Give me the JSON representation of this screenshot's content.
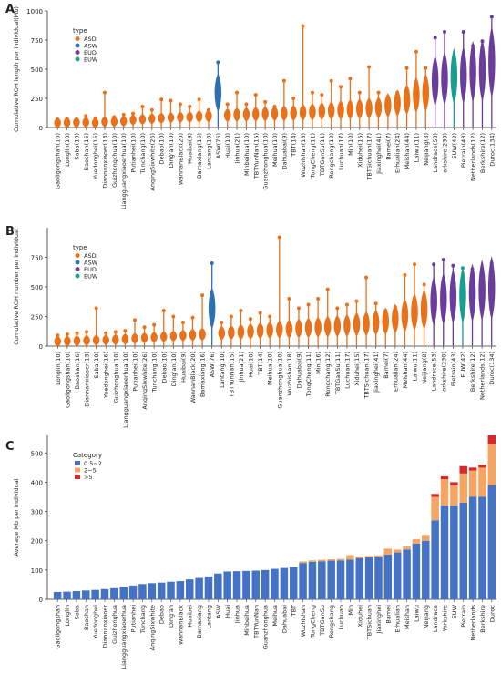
{
  "panel_labels": [
    "A",
    "B",
    "C"
  ],
  "colors": {
    "ASD": "#e8711a",
    "ASW": "#2f6fb0",
    "EUD": "#6a3d9a",
    "EUW": "#1a9e8f",
    "bar_05_2": "#4472c4",
    "bar_2_5": "#f5a462",
    "bar_gt5": "#d7282f"
  },
  "chart_data": [
    {
      "panel": "A",
      "type": "violin",
      "ylabel": "Cumulative ROH length per individual(Mb)",
      "ylim": [
        0,
        1000
      ],
      "yticks": [
        0,
        250,
        500,
        750,
        1000
      ],
      "legend": {
        "title": "type",
        "items": [
          "ASD",
          "ASW",
          "EUD",
          "EUW"
        ],
        "position": "top-left"
      },
      "categories": [
        {
          "label": "Gaoligongshan(10)",
          "type": "ASD",
          "median": 40,
          "max": 70
        },
        {
          "label": "Longlin(10)",
          "type": "ASD",
          "median": 42,
          "max": 75
        },
        {
          "label": "Saba(10)",
          "type": "ASD",
          "median": 44,
          "max": 70
        },
        {
          "label": "Baoshan(16)",
          "type": "ASD",
          "median": 45,
          "max": 100
        },
        {
          "label": "Yuedonghei(16)",
          "type": "ASD",
          "median": 40,
          "max": 80
        },
        {
          "label": "Diannanxiaoer(13)",
          "type": "ASD",
          "median": 50,
          "max": 300
        },
        {
          "label": "Guizhongchua(10)",
          "type": "ASD",
          "median": 52,
          "max": 90
        },
        {
          "label": "Liangguangxiaoerhua(10)",
          "type": "ASD",
          "median": 55,
          "max": 110
        },
        {
          "label": "Putianhei(10)",
          "type": "ASD",
          "median": 65,
          "max": 120
        },
        {
          "label": "Tunchang(10)",
          "type": "ASD",
          "median": 70,
          "max": 180
        },
        {
          "label": "AnqingSixwhite(26)",
          "type": "ASD",
          "median": 75,
          "max": 150
        },
        {
          "label": "Debao(10)",
          "type": "ASD",
          "median": 80,
          "max": 240
        },
        {
          "label": "Ding'an(10)",
          "type": "ASD",
          "median": 85,
          "max": 230
        },
        {
          "label": "WannanBlack(20)",
          "type": "ASD",
          "median": 88,
          "max": 200
        },
        {
          "label": "Huaibai(9)",
          "type": "ASD",
          "median": 90,
          "max": 180
        },
        {
          "label": "Bamaxiang(16)",
          "type": "ASD",
          "median": 95,
          "max": 240
        },
        {
          "label": "Lantang(10)",
          "type": "ASD",
          "median": 100,
          "max": 150
        },
        {
          "label": "ASW(76)",
          "type": "ASW",
          "median": 300,
          "max": 560
        },
        {
          "label": "Huai(10)",
          "type": "ASD",
          "median": 105,
          "max": 200
        },
        {
          "label": "Jinhua(21)",
          "type": "ASD",
          "median": 110,
          "max": 300
        },
        {
          "label": "Minbeihua(10)",
          "type": "ASD",
          "median": 112,
          "max": 200
        },
        {
          "label": "TBTYunNan(15)",
          "type": "ASD",
          "median": 115,
          "max": 280
        },
        {
          "label": "Guanzhonghua(10)",
          "type": "ASD",
          "median": 118,
          "max": 220
        },
        {
          "label": "Meihua(10)",
          "type": "ASD",
          "median": 120,
          "max": 180
        },
        {
          "label": "Dahuabai(9)",
          "type": "ASD",
          "median": 122,
          "max": 400
        },
        {
          "label": "TBT(14)",
          "type": "ASD",
          "median": 125,
          "max": 250
        },
        {
          "label": "Wuzhishan(18)",
          "type": "ASD",
          "median": 130,
          "max": 870
        },
        {
          "label": "TongCheng(11)",
          "type": "ASD",
          "median": 135,
          "max": 300
        },
        {
          "label": "TBTGanSu(11)",
          "type": "ASD",
          "median": 140,
          "max": 280
        },
        {
          "label": "Rongchang(12)",
          "type": "ASD",
          "median": 145,
          "max": 400
        },
        {
          "label": "Luchuan(17)",
          "type": "ASD",
          "median": 150,
          "max": 350
        },
        {
          "label": "Min(10)",
          "type": "ASD",
          "median": 155,
          "max": 420
        },
        {
          "label": "Xiduhei(15)",
          "type": "ASD",
          "median": 160,
          "max": 300
        },
        {
          "label": "TBTSichuan(17)",
          "type": "ASD",
          "median": 165,
          "max": 520
        },
        {
          "label": "Jiaxinghei(41)",
          "type": "ASD",
          "median": 170,
          "max": 300
        },
        {
          "label": "Bamei(7)",
          "type": "ASD",
          "median": 190,
          "max": 250
        },
        {
          "label": "Erhualian(24)",
          "type": "ASD",
          "median": 210,
          "max": 300
        },
        {
          "label": "Meishan(44)",
          "type": "ASD",
          "median": 240,
          "max": 510
        },
        {
          "label": "Laiwu(11)",
          "type": "ASD",
          "median": 280,
          "max": 650
        },
        {
          "label": "Neijiang(8)",
          "type": "ASD",
          "median": 300,
          "max": 510
        },
        {
          "label": "Landrace(53)",
          "type": "EUD",
          "median": 400,
          "max": 770
        },
        {
          "label": "orkshire(230)",
          "type": "EUD",
          "median": 420,
          "max": 820
        },
        {
          "label": "EUW(42)",
          "type": "EUW",
          "median": 440,
          "max": 600
        },
        {
          "label": "Pietrain(43)",
          "type": "EUD",
          "median": 450,
          "max": 820
        },
        {
          "label": "Netherlands(12)",
          "type": "EUD",
          "median": 480,
          "max": 700
        },
        {
          "label": "Berkshire(12)",
          "type": "EUD",
          "median": 490,
          "max": 740
        },
        {
          "label": "Duroc(134)",
          "type": "EUD",
          "median": 560,
          "max": 950
        }
      ]
    },
    {
      "panel": "B",
      "type": "violin",
      "ylabel": "Cumulative ROH number per individual",
      "ylim": [
        0,
        1000
      ],
      "yticks": [
        0,
        250,
        500,
        750
      ],
      "legend": {
        "title": "type",
        "items": [
          "ASD",
          "ASW",
          "EUD",
          "EUW"
        ],
        "position": "top-left"
      },
      "categories": [
        {
          "label": "Longlin(10)",
          "type": "ASD",
          "median": 40,
          "max": 90
        },
        {
          "label": "Gaoligongshan(10)",
          "type": "ASD",
          "median": 42,
          "max": 100
        },
        {
          "label": "Baoshan(16)",
          "type": "ASD",
          "median": 45,
          "max": 110
        },
        {
          "label": "Diannanxiaoer(13)",
          "type": "ASD",
          "median": 48,
          "max": 120
        },
        {
          "label": "Saba(10)",
          "type": "ASD",
          "median": 50,
          "max": 320
        },
        {
          "label": "Yuedonghei(16)",
          "type": "ASD",
          "median": 52,
          "max": 110
        },
        {
          "label": "Guizhonghua(10)",
          "type": "ASD",
          "median": 55,
          "max": 120
        },
        {
          "label": "Liangguangxiaoerhua(10)",
          "type": "ASD",
          "median": 60,
          "max": 130
        },
        {
          "label": "Putianhei(10)",
          "type": "ASD",
          "median": 65,
          "max": 220
        },
        {
          "label": "AnqingSixwhite(26)",
          "type": "ASD",
          "median": 70,
          "max": 160
        },
        {
          "label": "Tunchang(10)",
          "type": "ASD",
          "median": 75,
          "max": 180
        },
        {
          "label": "Debao(10)",
          "type": "ASD",
          "median": 80,
          "max": 300
        },
        {
          "label": "Ding'an(10)",
          "type": "ASD",
          "median": 85,
          "max": 250
        },
        {
          "label": "Huaibai(9)",
          "type": "ASD",
          "median": 90,
          "max": 200
        },
        {
          "label": "WannanBlack(20)",
          "type": "ASD",
          "median": 95,
          "max": 240
        },
        {
          "label": "Bamaxiang(16)",
          "type": "ASD",
          "median": 100,
          "max": 430
        },
        {
          "label": "ASW(76)",
          "type": "ASW",
          "median": 320,
          "max": 700
        },
        {
          "label": "Lantang(10)",
          "type": "ASD",
          "median": 110,
          "max": 200
        },
        {
          "label": "TBTYunNan(15)",
          "type": "ASD",
          "median": 115,
          "max": 250
        },
        {
          "label": "Jinhua(21)",
          "type": "ASD",
          "median": 120,
          "max": 300
        },
        {
          "label": "Huai(10)",
          "type": "ASD",
          "median": 125,
          "max": 230
        },
        {
          "label": "TBT(14)",
          "type": "ASD",
          "median": 130,
          "max": 280
        },
        {
          "label": "Meihua(10)",
          "type": "ASD",
          "median": 135,
          "max": 250
        },
        {
          "label": "Guanzhonghua(10)",
          "type": "ASD",
          "median": 140,
          "max": 920
        },
        {
          "label": "Wuzhishan(18)",
          "type": "ASD",
          "median": 145,
          "max": 400
        },
        {
          "label": "Dahuabai(9)",
          "type": "ASD",
          "median": 150,
          "max": 320
        },
        {
          "label": "TongCheng(11)",
          "type": "ASD",
          "median": 155,
          "max": 350
        },
        {
          "label": "Min(16)",
          "type": "ASD",
          "median": 160,
          "max": 400
        },
        {
          "label": "Rongchang(12)",
          "type": "ASD",
          "median": 165,
          "max": 480
        },
        {
          "label": "TBTGanSu(11)",
          "type": "ASD",
          "median": 170,
          "max": 320
        },
        {
          "label": "Luchuan(17)",
          "type": "ASD",
          "median": 175,
          "max": 350
        },
        {
          "label": "Xiduhei(15)",
          "type": "ASD",
          "median": 185,
          "max": 380
        },
        {
          "label": "TBTSichuan(17)",
          "type": "ASD",
          "median": 190,
          "max": 580
        },
        {
          "label": "Jiaxinghei(41)",
          "type": "ASD",
          "median": 200,
          "max": 360
        },
        {
          "label": "Bamei(7)",
          "type": "ASD",
          "median": 210,
          "max": 300
        },
        {
          "label": "Erhualian(24)",
          "type": "ASD",
          "median": 230,
          "max": 330
        },
        {
          "label": "Meishan(44)",
          "type": "ASD",
          "median": 260,
          "max": 600
        },
        {
          "label": "Laiwu(11)",
          "type": "ASD",
          "median": 290,
          "max": 690
        },
        {
          "label": "Neijiang(8)",
          "type": "ASD",
          "median": 310,
          "max": 520
        },
        {
          "label": "Landrace(53)",
          "type": "EUD",
          "median": 380,
          "max": 690
        },
        {
          "label": "orkshire(230)",
          "type": "EUD",
          "median": 400,
          "max": 730
        },
        {
          "label": "Pietrain(43)",
          "type": "EUD",
          "median": 420,
          "max": 680
        },
        {
          "label": "EUW(42)",
          "type": "EUW",
          "median": 430,
          "max": 660
        },
        {
          "label": "Berkshire(12)",
          "type": "EUD",
          "median": 450,
          "max": 650
        },
        {
          "label": "Netherlands(12)",
          "type": "EUD",
          "median": 470,
          "max": 620
        },
        {
          "label": "Duroc(134)",
          "type": "EUD",
          "median": 490,
          "max": 700
        }
      ]
    },
    {
      "panel": "C",
      "type": "bar",
      "stacked": true,
      "ylabel": "Average Mb per individual",
      "ylim": [
        0,
        560
      ],
      "yticks": [
        0,
        100,
        200,
        300,
        400,
        500
      ],
      "legend": {
        "title": "Category",
        "items": [
          "0.5~2",
          "2~5",
          ">5"
        ],
        "position": "top-left"
      },
      "categories": [
        "Gaoligongshan",
        "Longlin",
        "Saba",
        "Baoshan",
        "Yuedonghei",
        "Diannanxiaoer",
        "Guizhonghua",
        "Liangguangxiaoerhua",
        "Putianhei",
        "Tunchang",
        "AnqingSixwhite",
        "Debao",
        "Ding'an",
        "WannanBlack",
        "Huaibei",
        "Bamaxiang",
        "Lantang",
        "ASW",
        "Huai",
        "Jinhua",
        "Minbeihua",
        "TBTYunNan",
        "Guanzhonghua",
        "Meihua",
        "Dahuabai",
        "TBT",
        "Wuzhishan",
        "TongCheng",
        "TBTGanSu",
        "Rongchang",
        "Luchuan",
        "Min",
        "Xiduhei",
        "TBTSichuan",
        "Jiaxinghei",
        "Bamei",
        "Erhualian",
        "Meishan",
        "Laiwu",
        "Neijiang",
        "Landrace",
        "Yorkshire",
        "EUW",
        "Pietrain",
        "Netherlands",
        "Berkshire",
        "Duroc"
      ],
      "series": [
        {
          "name": "0.5~2",
          "values": [
            25,
            26,
            28,
            30,
            32,
            35,
            38,
            42,
            47,
            52,
            55,
            57,
            60,
            62,
            68,
            73,
            78,
            88,
            95,
            96,
            97,
            98,
            100,
            104,
            107,
            110,
            124,
            128,
            130,
            132,
            133,
            136,
            141,
            143,
            145,
            153,
            160,
            170,
            190,
            200,
            270,
            320,
            320,
            330,
            350,
            350,
            390
          ]
        },
        {
          "name": "2~5",
          "values": [
            0,
            0,
            0,
            0,
            0,
            0,
            0,
            0,
            0,
            0,
            0,
            0,
            0,
            0,
            0,
            0,
            0,
            0,
            0,
            0,
            0,
            0,
            0,
            0,
            0,
            0,
            5,
            5,
            5,
            5,
            5,
            15,
            5,
            5,
            5,
            20,
            10,
            10,
            15,
            20,
            80,
            90,
            70,
            100,
            90,
            100,
            140
          ]
        },
        {
          "name": ">5",
          "values": [
            0,
            0,
            0,
            0,
            0,
            0,
            0,
            0,
            0,
            0,
            0,
            0,
            0,
            0,
            0,
            0,
            0,
            0,
            0,
            0,
            0,
            0,
            0,
            0,
            0,
            0,
            0,
            0,
            0,
            0,
            0,
            0,
            0,
            0,
            0,
            0,
            0,
            0,
            0,
            0,
            10,
            10,
            10,
            25,
            10,
            10,
            30
          ]
        }
      ]
    }
  ]
}
